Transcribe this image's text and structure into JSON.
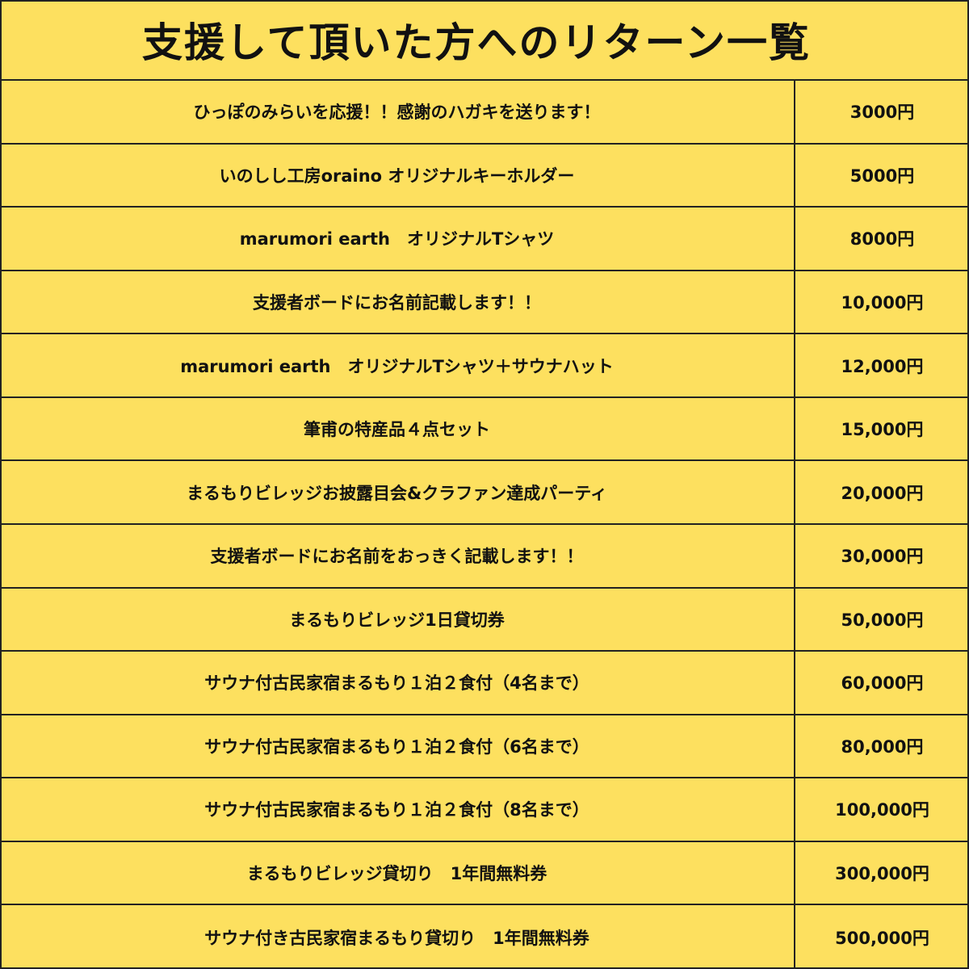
{
  "title": "支援して頂いた方へのリターン一覧",
  "rows": [
    {
      "item": "ひっぽのみらいを応援！！感謝のハガキを送ります！",
      "price": "3000円"
    },
    {
      "item": "いのしし工房oraino オリジナルキーホルダー",
      "price": "5000円"
    },
    {
      "item": "marumori earth　オリジナルTシャツ",
      "price": "8000円"
    },
    {
      "item": "支援者ボードにお名前記載します！！",
      "price": "10,000円"
    },
    {
      "item": "marumori earth　オリジナルTシャツ＋サウナハット",
      "price": "12,000円"
    },
    {
      "item": "筆甫の特産品４点セット",
      "price": "15,000円"
    },
    {
      "item": "まるもりビレッジお披露目会&クラファン達成パーティ",
      "price": "20,000円"
    },
    {
      "item": "支援者ボードにお名前をおっきく記載します！！",
      "price": "30,000円"
    },
    {
      "item": "まるもりビレッジ1日貸切券",
      "price": "50,000円"
    },
    {
      "item": "サウナ付古民家宿まるもり１泊２食付（4名まで）",
      "price": "60,000円"
    },
    {
      "item": "サウナ付古民家宿まるもり１泊２食付（6名まで）",
      "price": "80,000円"
    },
    {
      "item": "サウナ付古民家宿まるもり１泊２食付（8名まで）",
      "price": "100,000円"
    },
    {
      "item": "まるもりビレッジ貸切り　1年間無料券",
      "price": "300,000円"
    },
    {
      "item": "サウナ付き古民家宿まるもり貸切り　1年間無料券",
      "price": "500,000円"
    }
  ],
  "colors": {
    "background": "#fde05f",
    "border": "#222222"
  }
}
